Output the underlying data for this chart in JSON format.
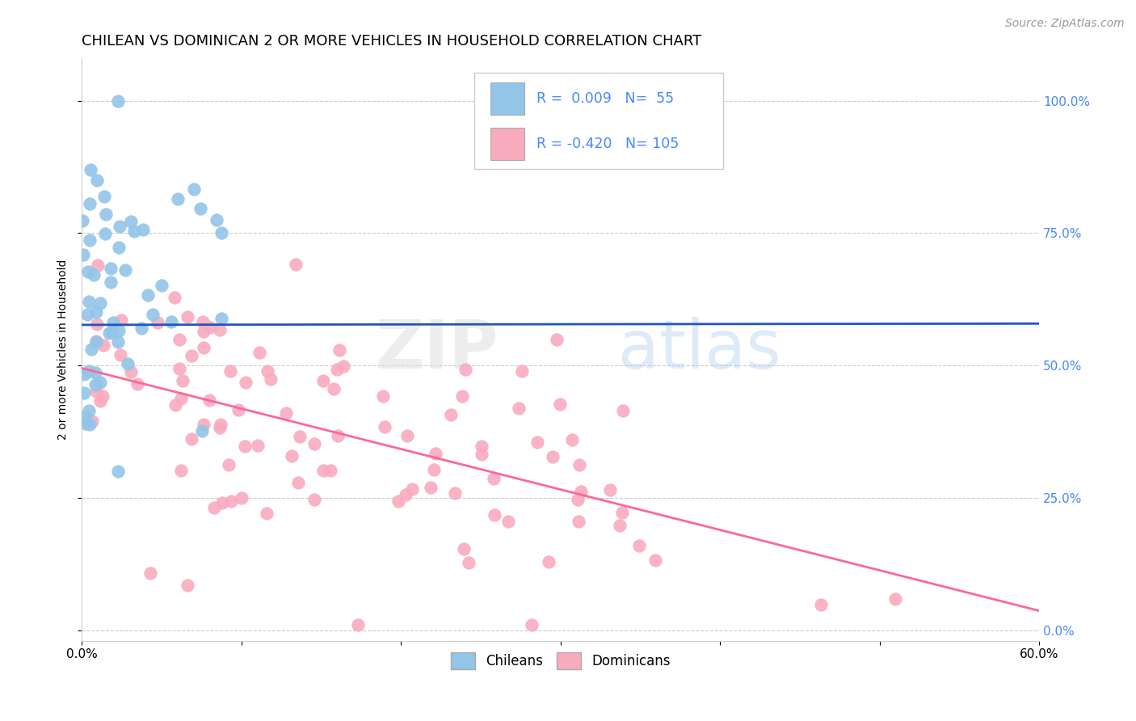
{
  "title": "CHILEAN VS DOMINICAN 2 OR MORE VEHICLES IN HOUSEHOLD CORRELATION CHART",
  "source": "Source: ZipAtlas.com",
  "ylabel": "2 or more Vehicles in Household",
  "xlim": [
    0.0,
    0.6
  ],
  "ylim": [
    0.0,
    1.0
  ],
  "yticks": [
    0.0,
    0.25,
    0.5,
    0.75,
    1.0
  ],
  "chilean_color": "#92C5E8",
  "dominican_color": "#F9ABBE",
  "chilean_line_color": "#2255BB",
  "dominican_line_color": "#FF6699",
  "legend_chilean_label": "Chileans",
  "legend_dominican_label": "Dominicans",
  "R_chilean": 0.009,
  "N_chilean": 55,
  "R_dominican": -0.42,
  "N_dominican": 105,
  "watermark_zip": "ZIP",
  "watermark_atlas": "atlas",
  "background_color": "#FFFFFF",
  "grid_color": "#CCCCCC",
  "title_fontsize": 13,
  "axis_label_fontsize": 10,
  "tick_fontsize": 11,
  "source_fontsize": 10,
  "right_tick_color": "#4488FF",
  "chilean_seed": 42,
  "dominican_seed": 7
}
